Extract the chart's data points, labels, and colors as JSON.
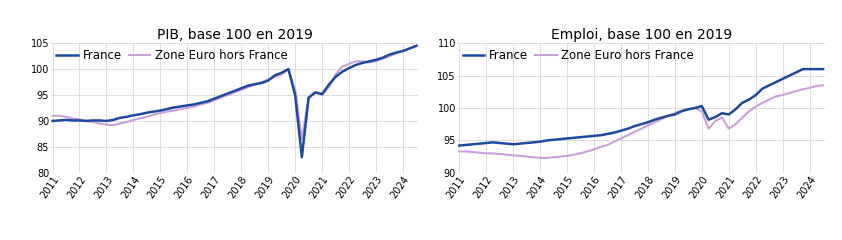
{
  "title_pib": "PIB, base 100 en 2019",
  "title_emploi": "Emploi, base 100 en 2019",
  "legend_france": "France",
  "legend_zone": "Zone Euro hors France",
  "color_france": "#1c4a9f",
  "color_zone": "#c9a0dc",
  "ylim_pib": [
    80,
    105
  ],
  "ylim_emploi": [
    90,
    110
  ],
  "yticks_pib": [
    80,
    85,
    90,
    95,
    100,
    105
  ],
  "yticks_emploi": [
    90,
    95,
    100,
    105,
    110
  ],
  "pib_france": [
    90.0,
    90.1,
    90.2,
    90.1,
    90.1,
    90.0,
    90.1,
    90.1,
    90.0,
    90.2,
    90.6,
    90.8,
    91.1,
    91.3,
    91.6,
    91.8,
    92.0,
    92.3,
    92.6,
    92.8,
    93.0,
    93.2,
    93.5,
    93.8,
    94.3,
    94.8,
    95.3,
    95.8,
    96.3,
    96.8,
    97.1,
    97.3,
    97.8,
    98.8,
    99.3,
    100.0,
    95.0,
    83.0,
    94.5,
    95.5,
    95.2,
    97.0,
    98.5,
    99.5,
    100.2,
    100.8,
    101.2,
    101.5,
    101.8,
    102.2,
    102.8,
    103.2,
    103.5,
    104.0,
    104.5
  ],
  "pib_zone": [
    91.0,
    91.0,
    90.8,
    90.5,
    90.3,
    90.0,
    89.8,
    89.5,
    89.3,
    89.2,
    89.5,
    89.8,
    90.2,
    90.5,
    90.8,
    91.2,
    91.5,
    91.8,
    92.0,
    92.3,
    92.5,
    92.8,
    93.2,
    93.5,
    94.0,
    94.5,
    95.0,
    95.5,
    96.0,
    96.5,
    97.0,
    97.5,
    98.0,
    98.5,
    99.0,
    100.0,
    96.0,
    86.5,
    94.5,
    95.5,
    95.0,
    96.5,
    99.0,
    100.5,
    101.0,
    101.5,
    101.5,
    101.3,
    101.5,
    102.0,
    102.5,
    103.0,
    103.5,
    104.0,
    104.5
  ],
  "emploi_france": [
    94.2,
    94.3,
    94.4,
    94.5,
    94.6,
    94.7,
    94.6,
    94.5,
    94.4,
    94.5,
    94.6,
    94.7,
    94.8,
    95.0,
    95.1,
    95.2,
    95.3,
    95.4,
    95.5,
    95.6,
    95.7,
    95.8,
    96.0,
    96.2,
    96.5,
    96.8,
    97.2,
    97.5,
    97.8,
    98.2,
    98.5,
    98.8,
    99.0,
    99.5,
    99.8,
    100.0,
    100.3,
    98.2,
    98.6,
    99.2,
    99.0,
    99.8,
    100.8,
    101.3,
    102.0,
    103.0,
    103.5,
    104.0,
    104.5,
    105.0,
    105.5,
    106.0,
    106.0,
    106.0,
    106.0
  ],
  "emploi_zone": [
    93.3,
    93.3,
    93.2,
    93.1,
    93.0,
    93.0,
    92.9,
    92.8,
    92.7,
    92.6,
    92.5,
    92.4,
    92.3,
    92.3,
    92.4,
    92.5,
    92.6,
    92.8,
    93.0,
    93.3,
    93.6,
    94.0,
    94.3,
    94.8,
    95.3,
    95.8,
    96.3,
    96.8,
    97.3,
    97.8,
    98.3,
    98.8,
    99.2,
    99.6,
    99.8,
    100.0,
    99.5,
    96.8,
    98.0,
    98.5,
    96.8,
    97.5,
    98.5,
    99.5,
    100.2,
    100.8,
    101.3,
    101.8,
    102.0,
    102.3,
    102.6,
    102.9,
    103.1,
    103.4,
    103.5
  ],
  "xtick_years": [
    "2011",
    "2012",
    "2013",
    "2014",
    "2015",
    "2016",
    "2017",
    "2018",
    "2019",
    "2020",
    "2021",
    "2022",
    "2023",
    "2024"
  ],
  "background_color": "#ffffff",
  "grid_color": "#d8d8d8",
  "linewidth_france": 1.8,
  "linewidth_zone": 1.5,
  "title_fontsize": 10,
  "tick_fontsize": 7,
  "legend_fontsize": 8.5
}
